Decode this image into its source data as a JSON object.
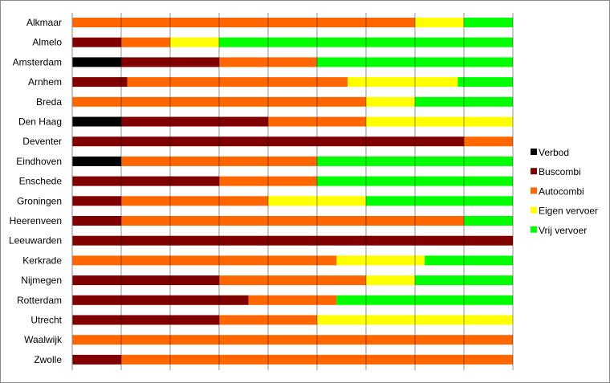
{
  "chart_data": {
    "type": "bar",
    "orientation": "horizontal",
    "stacked": "percent",
    "title": "",
    "xlabel": "",
    "ylabel": "",
    "grid": true,
    "legend_position": "right",
    "categories": [
      "Alkmaar",
      "Almelo",
      "Amsterdam",
      "Arnhem",
      "Breda",
      "Den Haag",
      "Deventer",
      "Eindhoven",
      "Enschede",
      "Groningen",
      "Heerenveen",
      "Leeuwarden",
      "Kerkrade",
      "Nijmegen",
      "Rotterdam",
      "Utrecht",
      "Waalwijk",
      "Zwolle"
    ],
    "series": [
      {
        "name": "Verbod",
        "color": "#000000",
        "values": [
          0,
          0,
          1,
          0,
          0,
          1,
          0,
          1,
          0,
          0,
          0,
          0,
          0,
          0,
          0,
          0,
          0,
          0
        ]
      },
      {
        "name": "Buscombi",
        "color": "#800000",
        "values": [
          0,
          1,
          2,
          1,
          0,
          3,
          8,
          0,
          3,
          1,
          1,
          1,
          0,
          3,
          2,
          3,
          0,
          1
        ]
      },
      {
        "name": "Autocombi",
        "color": "#FF6600",
        "values": [
          7,
          1,
          2,
          4,
          6,
          2,
          1,
          4,
          2,
          3,
          7,
          0,
          3,
          3,
          1,
          2,
          1,
          8
        ]
      },
      {
        "name": "Eigen vervoer",
        "color": "#FFFF00",
        "values": [
          1,
          1,
          0,
          2,
          1,
          3,
          0,
          0,
          0,
          2,
          0,
          0,
          1,
          1,
          0,
          4,
          0,
          0
        ]
      },
      {
        "name": "Vrij vervoer",
        "color": "#00FF00",
        "values": [
          1,
          6,
          4,
          1,
          2,
          0,
          0,
          4,
          4,
          3,
          1,
          0,
          1,
          2,
          2,
          0,
          0,
          0
        ]
      }
    ]
  }
}
